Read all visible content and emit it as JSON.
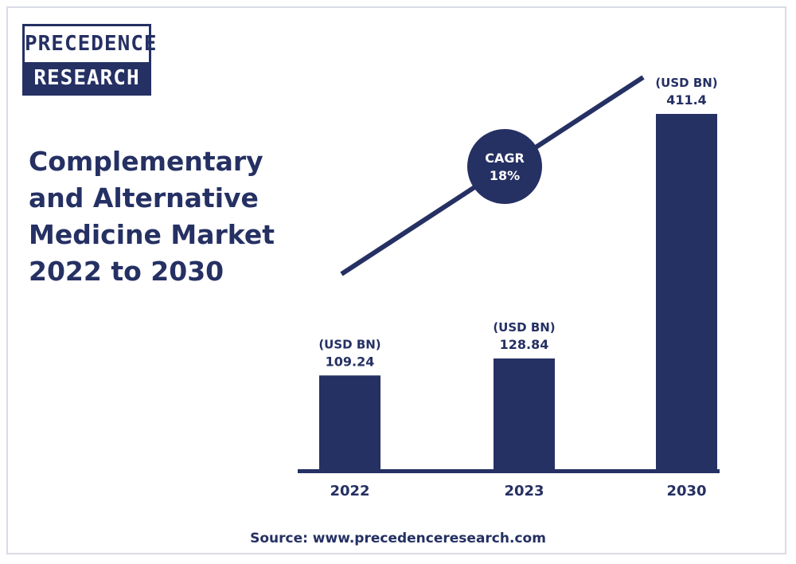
{
  "brand": {
    "logo_top": "PRECEDENCE",
    "logo_bottom": "RESEARCH"
  },
  "title_lines": [
    "Complementary",
    "and Alternative",
    "Medicine Market",
    "2022 to 2030"
  ],
  "source": "Source: www.precedenceresearch.com",
  "colors": {
    "primary": "#253063",
    "text": "#253063",
    "background": "#ffffff"
  },
  "chart_data": {
    "type": "bar",
    "title": "Complementary and Alternative Medicine Market 2022 to 2030",
    "categories": [
      "2022",
      "2023",
      "2030"
    ],
    "values": [
      109.24,
      128.84,
      411.4
    ],
    "value_labels": [
      "109.24",
      "128.84",
      "411.4"
    ],
    "unit_label": "(USD BN)",
    "ylim": [
      0,
      411.4
    ],
    "grid": false,
    "legend": "none",
    "annotation": {
      "type": "trend-arrow",
      "label_line1": "CAGR",
      "label_line2": "18%"
    }
  }
}
